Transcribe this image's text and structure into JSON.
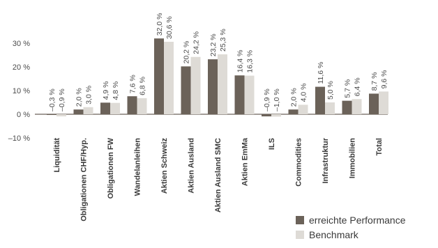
{
  "chart_data": {
    "type": "bar",
    "categories": [
      "Liquidität",
      "Obligationen CHF/Hyp.",
      "Obligationen FW",
      "Wandelanleihen",
      "Aktien Schweiz",
      "Aktien Ausland",
      "Aktien Ausland SMC",
      "Aktien EmMa",
      "ILS",
      "Commodities",
      "Infrastruktur",
      "Immobilien",
      "Total"
    ],
    "series": [
      {
        "name": "erreichte Performance",
        "color": "#6b6259",
        "values": [
          -0.3,
          2.0,
          4.9,
          7.6,
          32.0,
          20.2,
          23.2,
          16.4,
          -0.9,
          2.0,
          11.6,
          5.7,
          8.7
        ],
        "labels": [
          "–0,3 %",
          "2,0 %",
          "4,9 %",
          "7,6 %",
          "32,0 %",
          "20,2 %",
          "23,2 %",
          "16,4 %",
          "–0,9 %",
          "2,0 %",
          "11,6 %",
          "5,7 %",
          "8,7 %"
        ]
      },
      {
        "name": "Benchmark",
        "color": "#dedbd6",
        "values": [
          -0.9,
          3.0,
          4.8,
          6.8,
          30.6,
          24.2,
          25.3,
          16.3,
          -1.0,
          4.0,
          5.0,
          6.4,
          9.6
        ],
        "labels": [
          "–0,9 %",
          "3,0 %",
          "4,8 %",
          "6,8 %",
          "30,6 %",
          "24,2 %",
          "25,3 %",
          "16,3 %",
          "–1,0 %",
          "4,0 %",
          "5,0 %",
          "6,4 %",
          "9,6 %"
        ]
      }
    ],
    "yticks": [
      30,
      20,
      10,
      0,
      -10
    ],
    "ytick_labels": [
      "30 %",
      "20 %",
      "10 %",
      "0 %",
      "–10 %"
    ],
    "ylim": [
      -10,
      35
    ],
    "grid": false,
    "legend_position": "bottom-right"
  }
}
